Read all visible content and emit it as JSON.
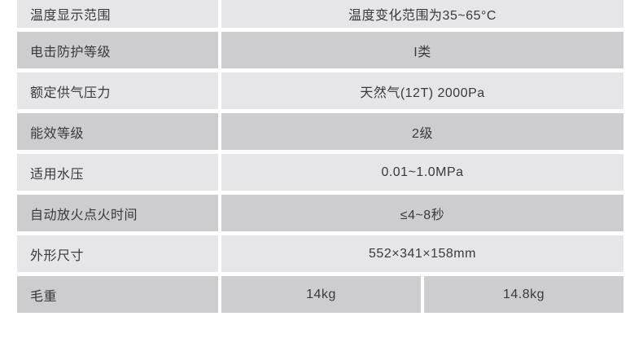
{
  "table": {
    "name": "product-spec-table",
    "rows": [
      {
        "label": "温度显示范围",
        "values": [
          "温度变化范围为35~65°C"
        ]
      },
      {
        "label": "电击防护等级",
        "values": [
          "I类"
        ]
      },
      {
        "label": "额定供气压力",
        "values": [
          "天然气(12T) 2000Pa"
        ]
      },
      {
        "label": "能效等级",
        "values": [
          "2级"
        ]
      },
      {
        "label": "适用水压",
        "values": [
          "0.01~1.0MPa"
        ]
      },
      {
        "label": "自动放火点火时间",
        "values": [
          "≤4~8秒"
        ]
      },
      {
        "label": "外形尺寸",
        "values": [
          "552×341×158mm"
        ]
      },
      {
        "label": "毛重",
        "values": [
          "14kg",
          "14.8kg"
        ]
      }
    ],
    "colors": {
      "row_light": "#e6e5e7",
      "row_dark": "#cdccce",
      "text": "#3a3a3a",
      "page_background": "#ffffff"
    }
  }
}
